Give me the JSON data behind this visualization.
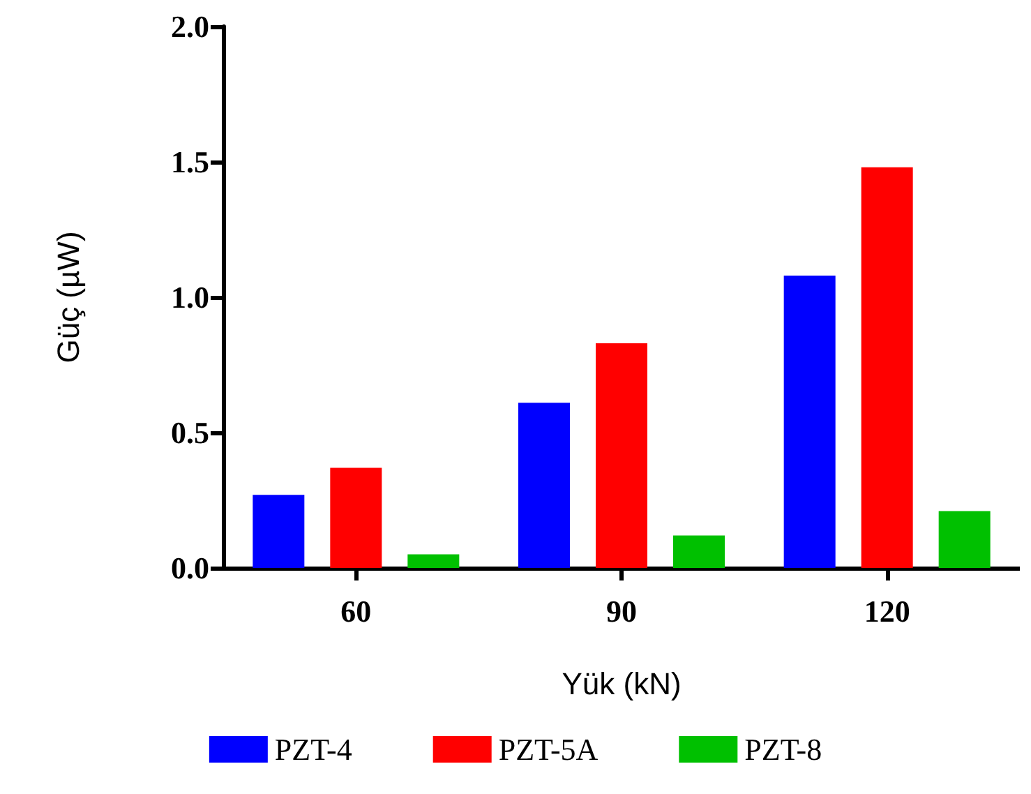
{
  "chart_data": {
    "type": "bar",
    "xlabel": "Yük (kN)",
    "ylabel": "Güç (µW)",
    "categories": [
      "60",
      "90",
      "120"
    ],
    "series": [
      {
        "name": "PZT-4",
        "color": "#0000ff",
        "values": [
          0.27,
          0.61,
          1.08
        ]
      },
      {
        "name": "PZT-5A",
        "color": "#ff0000",
        "values": [
          0.37,
          0.83,
          1.48
        ]
      },
      {
        "name": "PZT-8",
        "color": "#00c000",
        "values": [
          0.05,
          0.12,
          0.21
        ]
      }
    ],
    "ylim": [
      0,
      2
    ],
    "yticks": [
      {
        "value": 0,
        "label": "0.0"
      },
      0.5,
      {
        "value": 1,
        "label": "1.0"
      },
      1.5,
      {
        "value": 2,
        "label": "2.0"
      }
    ],
    "grid": false,
    "legend": "bottom"
  }
}
